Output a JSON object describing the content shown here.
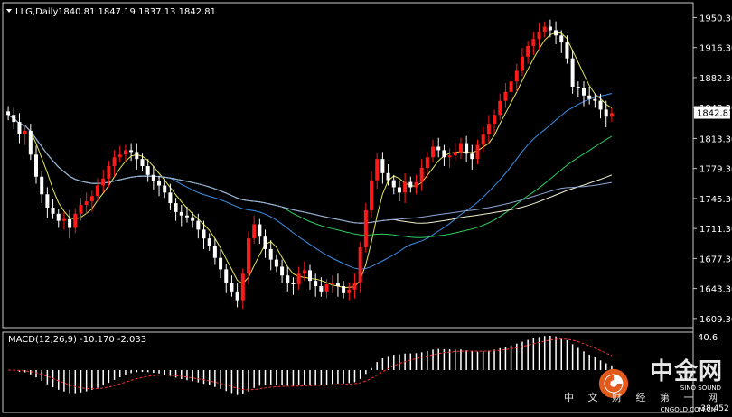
{
  "header": {
    "symbol": "LLG,Daily",
    "ohlc": "1840.81 1847.19 1837.13 1842.81"
  },
  "macd": {
    "label": "MACD(12,26,9) -10.170 -2.033",
    "top_label": "40.6",
    "bottom_label": "-38.452"
  },
  "watermark": {
    "title": "中金网",
    "subtitle": "中 文 财 经 第 一 网",
    "small1": "SINO SOUND",
    "small2": "CNGOLD.COM.CN"
  },
  "colors": {
    "bull": "#ff1a1a",
    "bear": "#ffffff",
    "ma_fast": "#e8e85a",
    "ma_blue": "#3a8fe8",
    "ma_green": "#2fcf60",
    "ma_white": "#f0f0d0",
    "ma_long": "#8fa8d8"
  },
  "chart_data": {
    "type": "candlestick",
    "price_axis": {
      "ticks": [
        "1950.30",
        "1916.30",
        "1882.30",
        "1848.30",
        "1813.30",
        "1779.30",
        "1745.30",
        "1711.30",
        "1677.30",
        "1643.30",
        "1609.30"
      ],
      "tick_values": [
        1950.3,
        1916.3,
        1882.3,
        1848.3,
        1813.3,
        1779.3,
        1745.3,
        1711.3,
        1677.3,
        1643.3,
        1609.3
      ],
      "current": "1842.81",
      "ylim": [
        1602,
        1962
      ]
    },
    "close_estimates": [
      1840,
      1832,
      1818,
      1822,
      1795,
      1770,
      1750,
      1735,
      1728,
      1720,
      1722,
      1712,
      1728,
      1738,
      1742,
      1748,
      1760,
      1768,
      1782,
      1792,
      1795,
      1800,
      1798,
      1790,
      1782,
      1772,
      1765,
      1760,
      1752,
      1740,
      1730,
      1726,
      1724,
      1720,
      1710,
      1700,
      1692,
      1678,
      1665,
      1650,
      1640,
      1630,
      1660,
      1700,
      1716,
      1702,
      1688,
      1676,
      1668,
      1658,
      1650,
      1648,
      1660,
      1664,
      1652,
      1646,
      1640,
      1648,
      1650,
      1646,
      1638,
      1642,
      1650,
      1690,
      1732,
      1766,
      1790,
      1774,
      1766,
      1758,
      1752,
      1764,
      1758,
      1764,
      1780,
      1792,
      1804,
      1800,
      1792,
      1794,
      1798,
      1808,
      1796,
      1790,
      1806,
      1818,
      1830,
      1840,
      1856,
      1866,
      1878,
      1890,
      1906,
      1918,
      1926,
      1934,
      1940,
      1936,
      1930,
      1922,
      1904,
      1872,
      1870,
      1862,
      1858,
      1856,
      1846,
      1838,
      1842
    ]
  }
}
